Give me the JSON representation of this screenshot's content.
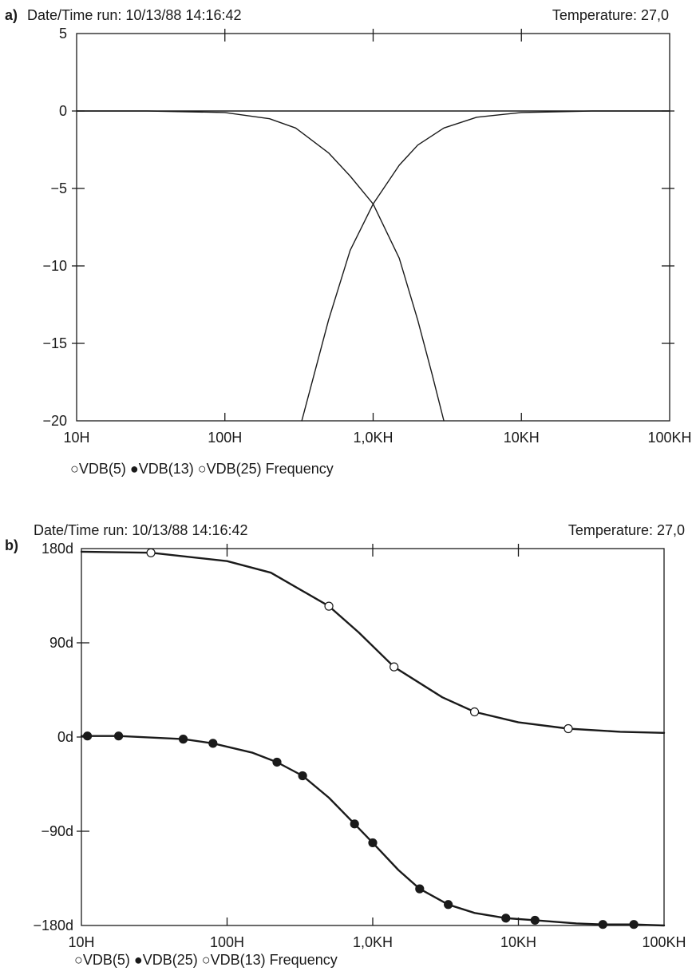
{
  "chart_data": [
    {
      "panel_label": "a)",
      "type": "line",
      "header_left": "Date/Time run: 10/13/88  14:16:42",
      "header_right": "Temperature: 27,0",
      "x_scale": "log",
      "x_range": [
        10,
        100000
      ],
      "y_range": [
        -20,
        5
      ],
      "x_tick_values": [
        10,
        100,
        1000,
        10000,
        100000
      ],
      "x_tick_labels": [
        "10H",
        "100H",
        "1,0KH",
        "10KH",
        "100KH"
      ],
      "y_tick_values": [
        5,
        0,
        -5,
        -10,
        -15,
        -20
      ],
      "y_tick_labels": [
        "5",
        "0",
        "−5",
        "−10",
        "−15",
        "−20"
      ],
      "legend_text": "○VDB(5) ●VDB(13) ○VDB(25)   Frequency",
      "grid": false,
      "series": [
        {
          "x": [
            10,
            30,
            100,
            200,
            300,
            500,
            700,
            1000,
            1500,
            2000,
            2500,
            3000
          ],
          "y": [
            0,
            0,
            -0.1,
            -0.5,
            -1.1,
            -2.7,
            -4.2,
            -6.0,
            -9.5,
            -13.5,
            -17.0,
            -20.0
          ]
        },
        {
          "x": [
            330,
            400,
            500,
            700,
            1000,
            1500,
            2000,
            3000,
            5000,
            10000,
            30000,
            100000
          ],
          "y": [
            -20.0,
            -17.0,
            -13.5,
            -9.0,
            -6.0,
            -3.5,
            -2.2,
            -1.1,
            -0.4,
            -0.1,
            0,
            0
          ]
        },
        {
          "x": [
            10,
            100000
          ],
          "y": [
            0,
            0
          ]
        }
      ]
    },
    {
      "panel_label": "b)",
      "type": "line",
      "header_left": "Date/Time run: 10/13/88  14:16:42",
      "header_right": "Temperature: 27,0",
      "x_scale": "log",
      "x_range": [
        10,
        100000
      ],
      "y_range": [
        -180,
        180
      ],
      "x_tick_values": [
        10,
        100,
        1000,
        10000,
        100000
      ],
      "x_tick_labels": [
        "10H",
        "100H",
        "1,0KH",
        "10KH",
        "100KH"
      ],
      "y_tick_values": [
        180,
        90,
        0,
        -90,
        -180
      ],
      "y_tick_labels": [
        "180d",
        "90d",
        "0d",
        "−90d",
        "−180d"
      ],
      "legend_text": "○VDB(5) ●VDB(25) ○VDB(13)   Frequency",
      "grid": false,
      "series": [
        {
          "marker": "open-circle",
          "x": [
            10,
            30,
            100,
            200,
            500,
            800,
            1400,
            3000,
            5000,
            10000,
            22000,
            50000,
            100000
          ],
          "y": [
            177,
            176,
            168,
            157,
            125,
            100,
            67,
            38,
            24,
            14,
            8,
            5,
            4
          ],
          "marker_x": [
            30,
            500,
            1400,
            5000,
            22000
          ],
          "marker_y": [
            176,
            125,
            67,
            24,
            8
          ]
        },
        {
          "marker": "filled-circle",
          "x": [
            10,
            18,
            50,
            80,
            150,
            220,
            330,
            500,
            750,
            1000,
            1500,
            2100,
            3300,
            5000,
            8200,
            13000,
            25000,
            38000,
            62000,
            100000
          ],
          "y": [
            1,
            1,
            -2,
            -6,
            -15,
            -24,
            -37,
            -58,
            -83,
            -101,
            -127,
            -145,
            -160,
            -168,
            -173,
            -175,
            -178,
            -179,
            -179,
            -180
          ],
          "marker_x": [
            11,
            18,
            50,
            80,
            220,
            330,
            750,
            1000,
            2100,
            3300,
            8200,
            13000,
            38000,
            62000
          ],
          "marker_y": [
            1,
            1,
            -2,
            -6,
            -24,
            -37,
            -83,
            -101,
            -145,
            -160,
            -173,
            -175,
            -179,
            -179
          ]
        }
      ]
    }
  ]
}
